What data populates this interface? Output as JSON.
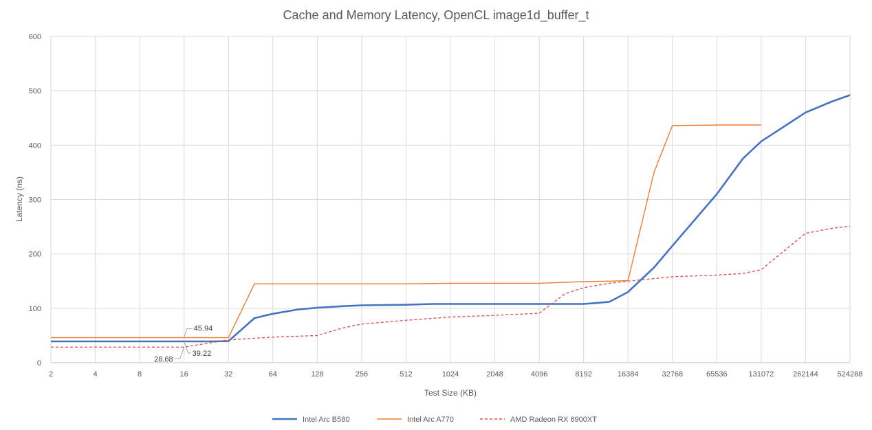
{
  "chart_data": {
    "type": "line",
    "title": "Cache and Memory Latency, OpenCL image1d_buffer_t",
    "xlabel": "Test Size (KB)",
    "ylabel": "Latency (ns)",
    "x_scale": "log2",
    "x_ticks": [
      2,
      4,
      8,
      16,
      32,
      64,
      128,
      256,
      512,
      1024,
      2048,
      4096,
      8192,
      16384,
      32768,
      65536,
      131072,
      262144,
      524288
    ],
    "xlim": [
      2,
      524288
    ],
    "ylim": [
      0,
      600
    ],
    "y_ticks": [
      0,
      100,
      200,
      300,
      400,
      500,
      600
    ],
    "grid": true,
    "legend_position": "bottom",
    "series": [
      {
        "name": "Intel Arc B580",
        "color": "#4472C4",
        "style": "solid-thick",
        "points": [
          [
            2,
            39.22
          ],
          [
            4,
            39.22
          ],
          [
            8,
            39.22
          ],
          [
            16,
            39.22
          ],
          [
            24,
            39.22
          ],
          [
            32,
            39.5
          ],
          [
            48,
            82
          ],
          [
            64,
            90
          ],
          [
            96,
            98
          ],
          [
            128,
            101
          ],
          [
            192,
            104
          ],
          [
            256,
            105.5
          ],
          [
            512,
            106.5
          ],
          [
            768,
            108
          ],
          [
            1024,
            108
          ],
          [
            2048,
            108
          ],
          [
            4096,
            108
          ],
          [
            8192,
            108
          ],
          [
            10240,
            110
          ],
          [
            12288,
            112
          ],
          [
            16384,
            130
          ],
          [
            24576,
            175
          ],
          [
            32768,
            215
          ],
          [
            65536,
            310
          ],
          [
            98304,
            375
          ],
          [
            131072,
            407
          ],
          [
            262144,
            460
          ],
          [
            393216,
            480
          ],
          [
            524288,
            492
          ]
        ]
      },
      {
        "name": "Intel Arc A770",
        "color": "#ED7D31",
        "style": "solid-thin",
        "points": [
          [
            2,
            45.94
          ],
          [
            4,
            45.94
          ],
          [
            8,
            45.94
          ],
          [
            16,
            45.94
          ],
          [
            32,
            45.94
          ],
          [
            48,
            145
          ],
          [
            64,
            145
          ],
          [
            128,
            145
          ],
          [
            256,
            145
          ],
          [
            512,
            145
          ],
          [
            1024,
            146
          ],
          [
            2048,
            146
          ],
          [
            4096,
            146
          ],
          [
            8192,
            149
          ],
          [
            12288,
            150
          ],
          [
            16384,
            151
          ],
          [
            24576,
            350
          ],
          [
            32768,
            436
          ],
          [
            65536,
            437
          ],
          [
            131072,
            437
          ]
        ]
      },
      {
        "name": "AMD Radeon RX 6900XT",
        "color": "#E0524F",
        "style": "dashed",
        "points": [
          [
            2,
            28.68
          ],
          [
            4,
            28.68
          ],
          [
            8,
            28.68
          ],
          [
            16,
            28.68
          ],
          [
            32,
            42
          ],
          [
            64,
            47
          ],
          [
            128,
            50
          ],
          [
            192,
            64
          ],
          [
            256,
            71
          ],
          [
            512,
            78
          ],
          [
            1024,
            84
          ],
          [
            2048,
            87
          ],
          [
            4096,
            91
          ],
          [
            6144,
            127
          ],
          [
            8192,
            138
          ],
          [
            12288,
            146
          ],
          [
            16384,
            150
          ],
          [
            32768,
            158
          ],
          [
            65536,
            161
          ],
          [
            98304,
            164
          ],
          [
            131072,
            171
          ],
          [
            262144,
            238
          ],
          [
            393216,
            247
          ],
          [
            524288,
            251
          ]
        ]
      }
    ],
    "annotations": [
      {
        "text": "45.94",
        "x": 16,
        "y": 45.94
      },
      {
        "text": "39.22",
        "x": 16,
        "y": 39.22
      },
      {
        "text": "28.68",
        "x": 16,
        "y": 28.68
      }
    ]
  }
}
